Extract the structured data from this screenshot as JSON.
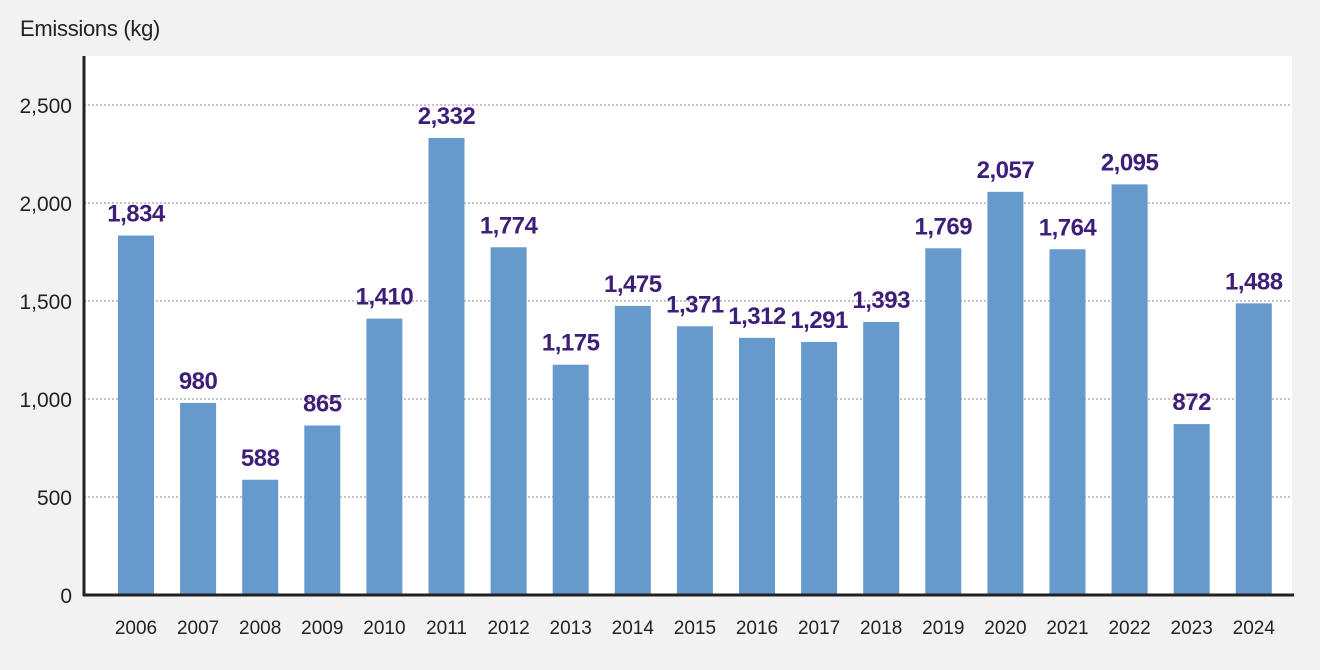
{
  "chart_data": {
    "type": "bar",
    "ylabel": "Emissions (kg)",
    "xlabel": "",
    "title": "",
    "categories": [
      "2006",
      "2007",
      "2008",
      "2009",
      "2010",
      "2011",
      "2012",
      "2013",
      "2014",
      "2015",
      "2016",
      "2017",
      "2018",
      "2019",
      "2020",
      "2021",
      "2022",
      "2023",
      "2024"
    ],
    "values": [
      1834,
      980,
      588,
      865,
      1410,
      2332,
      1774,
      1175,
      1475,
      1371,
      1312,
      1291,
      1393,
      1769,
      2057,
      1764,
      2095,
      872,
      1488
    ],
    "value_labels": [
      "1,834",
      "980",
      "588",
      "865",
      "1,410",
      "2,332",
      "1,774",
      "1,175",
      "1,475",
      "1,371",
      "1,312",
      "1,291",
      "1,393",
      "1,769",
      "2,057",
      "1,764",
      "2,095",
      "872",
      "1,488"
    ],
    "ylim": [
      0,
      2750
    ],
    "yticks": [
      0,
      500,
      1000,
      1500,
      2000,
      2500
    ],
    "ytick_labels": [
      "0",
      "500",
      "1,000",
      "1,500",
      "2,000",
      "2,500"
    ],
    "grid": "horizontal-dotted",
    "colors": {
      "bar": "#6699cc",
      "value_label": "#3d1f7a",
      "axis": "#222222",
      "grid": "#8a8a8a",
      "plot_bg": "#ffffff",
      "page_bg": "#f2f2f2",
      "tick_text": "#222222"
    }
  }
}
